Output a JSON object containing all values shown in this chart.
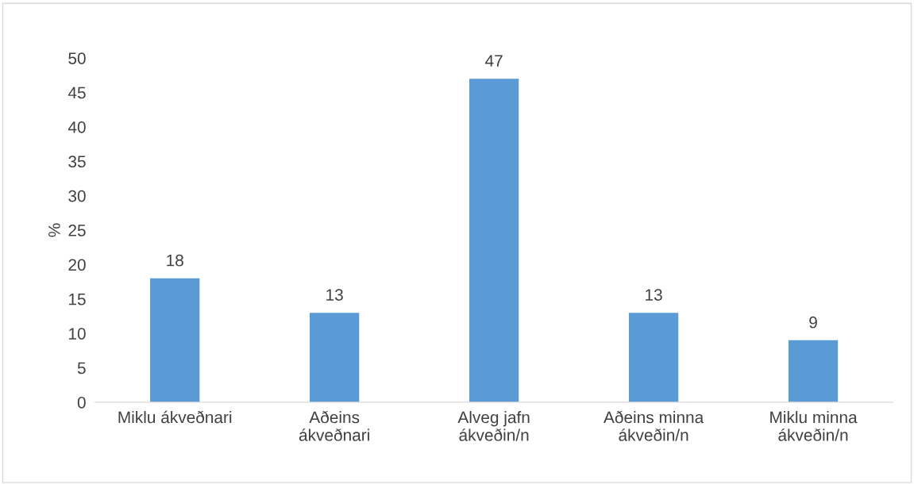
{
  "chart_data": {
    "type": "bar",
    "ylabel": "%",
    "categories": [
      "Miklu ákveðnari",
      "Aðeins\nákveðnari",
      "Alveg jafn\nákveðin/n",
      "Aðeins minna\nákveðin/n",
      "Miklu minna\nákveðin/n"
    ],
    "values": [
      18,
      13,
      47,
      13,
      9
    ],
    "color": "#5b9bd5",
    "ylim": [
      0,
      50
    ],
    "yticks": [
      0,
      5,
      10,
      15,
      20,
      25,
      30,
      35,
      40,
      45,
      50
    ],
    "data_labels": true,
    "grid": false,
    "legend": false
  }
}
